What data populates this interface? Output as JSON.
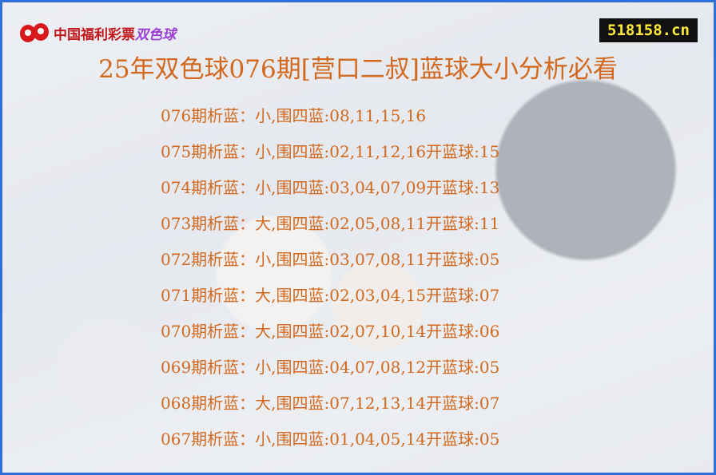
{
  "logo": {
    "text": "中国福利彩票",
    "accent": "双色球"
  },
  "site": "518158.cn",
  "title": "25年双色球076期[营口二叔]蓝球大小分析必看",
  "rows": [
    "076期析蓝：小,围四蓝:08,11,15,16",
    "075期析蓝：小,围四蓝:02,11,12,16开蓝球:15",
    "074期析蓝：小,围四蓝:03,04,07,09开蓝球:13",
    "073期析蓝：大,围四蓝:02,05,08,11开蓝球:11",
    "072期析蓝：小,围四蓝:03,07,08,11开蓝球:05",
    "071期析蓝：大,围四蓝:02,03,04,15开蓝球:07",
    "070期析蓝：大,围四蓝:02,07,10,14开蓝球:06",
    "069期析蓝：小,围四蓝:04,07,08,12开蓝球:05",
    "068期析蓝：大,围四蓝:07,12,13,14开蓝球:07",
    "067期析蓝：小,围四蓝:01,04,05,14开蓝球:05"
  ],
  "colors": {
    "text": "#d2691e",
    "border": "#2f6fd6",
    "site_bg": "#111111",
    "site_text": "#ffea3a"
  }
}
